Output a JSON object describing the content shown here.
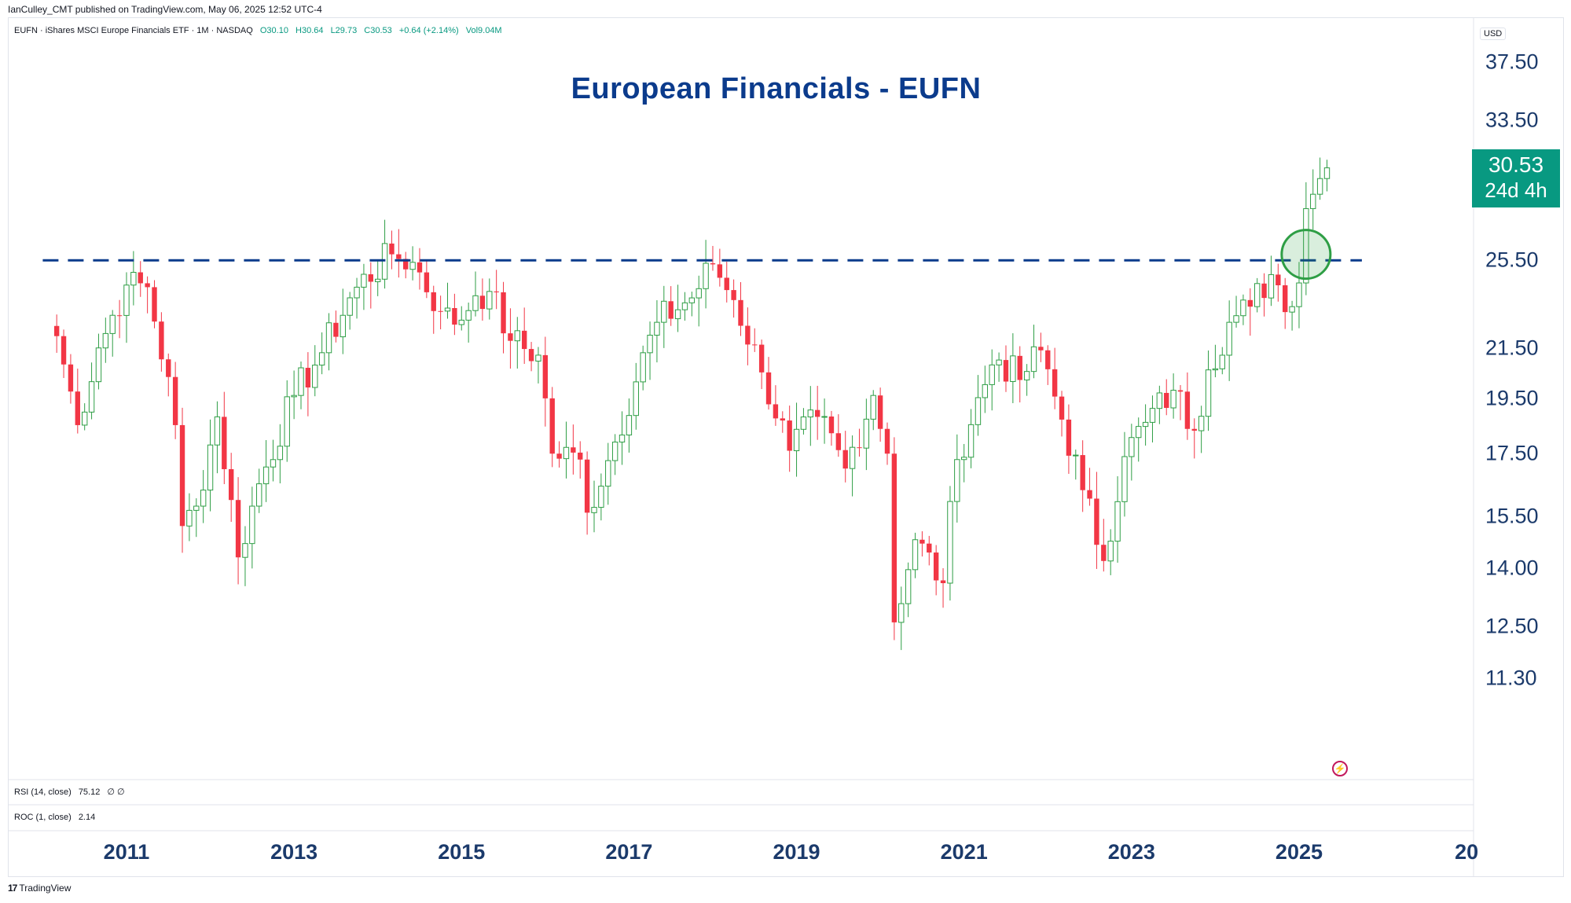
{
  "publisher_line": "IanCulley_CMT published on TradingView.com, May 06, 2025 12:52 UTC-4",
  "legend": {
    "symbol": "EUFN · iShares MSCI Europe Financials ETF · 1M · NASDAQ",
    "open": "O30.10",
    "high": "H30.64",
    "low": "L29.73",
    "close": "C30.53",
    "change": "+0.64 (+2.14%)",
    "volume": "Vol9.04M"
  },
  "currency": "USD",
  "last_price": {
    "price": "30.53",
    "countdown": "24d 4h"
  },
  "indicators": {
    "rsi": {
      "label": "RSI (14, close)",
      "value": "75.12",
      "extra": "∅  ∅"
    },
    "roc": {
      "label": "ROC (1, close)",
      "value": "2.14"
    }
  },
  "branding": "TradingView",
  "colors": {
    "up": "#089981",
    "down": "#f23645",
    "title": "#0b3b8c",
    "resistance": "#0b3b8c",
    "circle": "#2e9e45"
  },
  "icons": [
    "flash-icon",
    "tradingview-logo-icon"
  ],
  "chart_data": {
    "type": "candlestick",
    "title": "European Financials - EUFN",
    "x_tick_labels": [
      "2011",
      "2013",
      "2015",
      "2017",
      "2019",
      "2021",
      "2023",
      "2025",
      "20"
    ],
    "y_tick_labels": [
      "37.50",
      "33.50",
      "25.50",
      "21.50",
      "19.50",
      "17.50",
      "15.50",
      "14.00",
      "12.50",
      "11.30"
    ],
    "y_scale": "log",
    "y_range": [
      10.2,
      38.5
    ],
    "x_range": [
      "2009-08",
      "2027-02"
    ],
    "resistance_level": 25.5,
    "highlight": {
      "date": "2025-02",
      "price": 25.8,
      "shape": "circle"
    },
    "anchor_points": [
      [
        "2010-03",
        22.0
      ],
      [
        "2010-06",
        18.5
      ],
      [
        "2010-09",
        21.5
      ],
      [
        "2011-01",
        24.3
      ],
      [
        "2011-04",
        24.2
      ],
      [
        "2011-08",
        18.5
      ],
      [
        "2011-09",
        15.2
      ],
      [
        "2011-11",
        15.8
      ],
      [
        "2012-02",
        18.8
      ],
      [
        "2012-05",
        14.3
      ],
      [
        "2012-07",
        15.8
      ],
      [
        "2013-01",
        19.6
      ],
      [
        "2013-05",
        21.3
      ],
      [
        "2013-10",
        24.2
      ],
      [
        "2014-03",
        25.8
      ],
      [
        "2014-06",
        25.4
      ],
      [
        "2014-10",
        23.1
      ],
      [
        "2014-12",
        22.5
      ],
      [
        "2015-03",
        23.8
      ],
      [
        "2015-05",
        24.0
      ],
      [
        "2015-08",
        21.8
      ],
      [
        "2015-12",
        21.2
      ],
      [
        "2016-02",
        17.5
      ],
      [
        "2016-06",
        17.3
      ],
      [
        "2016-07",
        15.6
      ],
      [
        "2016-11",
        17.9
      ],
      [
        "2017-05",
        22.6
      ],
      [
        "2017-10",
        23.7
      ],
      [
        "2018-01",
        25.3
      ],
      [
        "2018-04",
        23.6
      ],
      [
        "2018-08",
        20.5
      ],
      [
        "2018-12",
        17.6
      ],
      [
        "2019-04",
        18.8
      ],
      [
        "2019-08",
        17.0
      ],
      [
        "2019-12",
        19.6
      ],
      [
        "2020-02",
        17.5
      ],
      [
        "2020-03",
        12.6
      ],
      [
        "2020-06",
        14.8
      ],
      [
        "2020-10",
        13.6
      ],
      [
        "2020-12",
        17.3
      ],
      [
        "2021-05",
        20.8
      ],
      [
        "2021-06",
        21.0
      ],
      [
        "2021-09",
        20.2
      ],
      [
        "2021-12",
        21.4
      ],
      [
        "2022-03",
        18.7
      ],
      [
        "2022-06",
        16.3
      ],
      [
        "2022-09",
        14.2
      ],
      [
        "2022-12",
        17.4
      ],
      [
        "2023-03",
        18.6
      ],
      [
        "2023-07",
        19.8
      ],
      [
        "2023-10",
        18.3
      ],
      [
        "2023-12",
        20.6
      ],
      [
        "2024-03",
        22.6
      ],
      [
        "2024-06",
        23.3
      ],
      [
        "2024-09",
        24.8
      ],
      [
        "2024-12",
        23.3
      ],
      [
        "2025-01",
        24.4
      ],
      [
        "2025-02",
        28.2
      ],
      [
        "2025-03",
        29.0
      ],
      [
        "2025-04",
        29.9
      ],
      [
        "2025-05",
        30.53
      ]
    ]
  }
}
